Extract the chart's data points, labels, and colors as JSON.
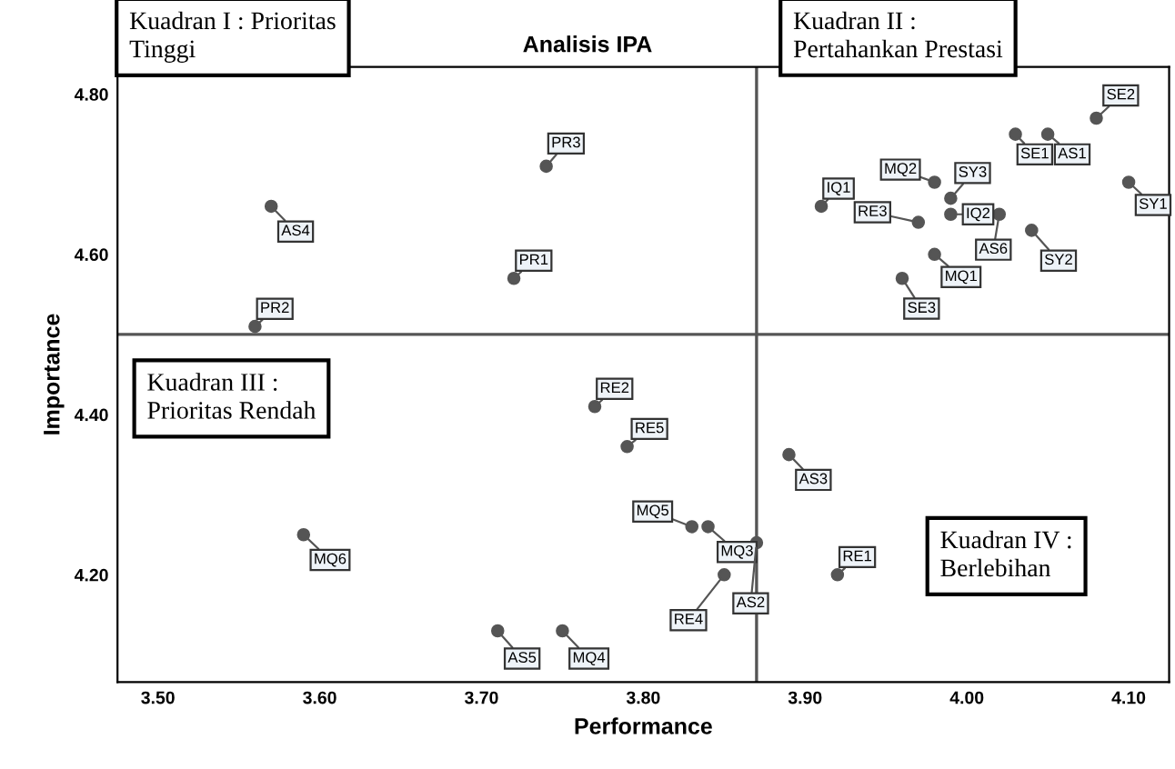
{
  "chart_data": {
    "type": "scatter",
    "title": "Analisis IPA",
    "xlabel": "Performance",
    "ylabel": "Importance",
    "marker": "circle",
    "grid": false,
    "xlim": [
      3.475,
      4.125
    ],
    "ylim": [
      4.066,
      4.834
    ],
    "xticks": [
      {
        "value": 3.5,
        "label": "3.50"
      },
      {
        "value": 3.6,
        "label": "3.60"
      },
      {
        "value": 3.7,
        "label": "3.70"
      },
      {
        "value": 3.8,
        "label": "3.80"
      },
      {
        "value": 3.9,
        "label": "3.90"
      },
      {
        "value": 4.0,
        "label": "4.00"
      },
      {
        "value": 4.1,
        "label": "4.10"
      }
    ],
    "yticks": [
      {
        "value": 4.2,
        "label": "4.20"
      },
      {
        "value": 4.4,
        "label": "4.40"
      },
      {
        "value": 4.6,
        "label": "4.60"
      },
      {
        "value": 4.8,
        "label": "4.80"
      }
    ],
    "ref_lines": [
      {
        "axis": "x",
        "value": 3.87,
        "color": "#555555"
      },
      {
        "axis": "y",
        "value": 4.5,
        "color": "#555555"
      }
    ],
    "series": [
      {
        "color": "#555555",
        "x": [
          3.57,
          3.56,
          3.74,
          3.72,
          3.91,
          4.03,
          4.05,
          4.08,
          4.1,
          3.98,
          3.99,
          3.99,
          3.97,
          4.02,
          4.04,
          3.98,
          3.96,
          3.77,
          3.79,
          3.83,
          3.84,
          3.87,
          3.85,
          3.59,
          3.71,
          3.75,
          3.89,
          3.92
        ],
        "values": [
          4.66,
          4.51,
          4.71,
          4.57,
          4.66,
          4.75,
          4.75,
          4.77,
          4.69,
          4.69,
          4.67,
          4.65,
          4.64,
          4.65,
          4.63,
          4.6,
          4.57,
          4.41,
          4.36,
          4.26,
          4.26,
          4.24,
          4.2,
          4.25,
          4.13,
          4.13,
          4.35,
          4.2
        ]
      }
    ],
    "annotations": [
      {
        "text": "AS4",
        "x": 3.57,
        "y": 4.66
      },
      {
        "text": "PR2",
        "x": 3.56,
        "y": 4.51
      },
      {
        "text": "PR3",
        "x": 3.74,
        "y": 4.71
      },
      {
        "text": "PR1",
        "x": 3.72,
        "y": 4.57
      },
      {
        "text": "IQ1",
        "x": 3.91,
        "y": 4.66
      },
      {
        "text": "SE1",
        "x": 4.03,
        "y": 4.75
      },
      {
        "text": "AS1",
        "x": 4.05,
        "y": 4.75
      },
      {
        "text": "SE2",
        "x": 4.08,
        "y": 4.77
      },
      {
        "text": "SY1",
        "x": 4.1,
        "y": 4.69
      },
      {
        "text": "MQ2",
        "x": 3.98,
        "y": 4.69
      },
      {
        "text": "SY3",
        "x": 3.99,
        "y": 4.67
      },
      {
        "text": "IQ2",
        "x": 3.99,
        "y": 4.65
      },
      {
        "text": "RE3",
        "x": 3.97,
        "y": 4.64
      },
      {
        "text": "AS6",
        "x": 4.02,
        "y": 4.65
      },
      {
        "text": "SY2",
        "x": 4.04,
        "y": 4.63
      },
      {
        "text": "MQ1",
        "x": 3.98,
        "y": 4.6
      },
      {
        "text": "SE3",
        "x": 3.96,
        "y": 4.57
      },
      {
        "text": "RE2",
        "x": 3.77,
        "y": 4.41
      },
      {
        "text": "RE5",
        "x": 3.79,
        "y": 4.36
      },
      {
        "text": "MQ5",
        "x": 3.83,
        "y": 4.26
      },
      {
        "text": "MQ3",
        "x": 3.84,
        "y": 4.26
      },
      {
        "text": "AS2",
        "x": 3.87,
        "y": 4.24
      },
      {
        "text": "RE4",
        "x": 3.85,
        "y": 4.2
      },
      {
        "text": "MQ6",
        "x": 3.59,
        "y": 4.25
      },
      {
        "text": "AS5",
        "x": 3.71,
        "y": 4.13
      },
      {
        "text": "MQ4",
        "x": 3.75,
        "y": 4.13
      },
      {
        "text": "AS3",
        "x": 3.89,
        "y": 4.35
      },
      {
        "text": "RE1",
        "x": 3.92,
        "y": 4.2
      },
      "Kuadran I : Prioritas\nTinggi",
      "Kuadran II :\nPertahankan Prestasi",
      "Kuadran III :\nPrioritas Rendah",
      "Kuadran IV :\nBerlebihan"
    ]
  }
}
